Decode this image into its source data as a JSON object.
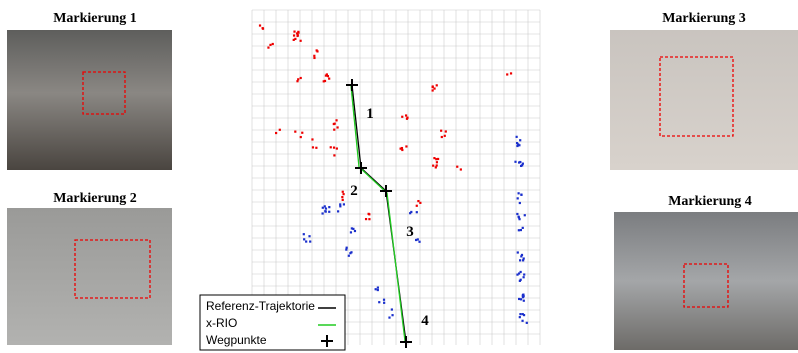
{
  "panels": [
    {
      "title": "Markierung 1"
    },
    {
      "title": "Markierung 2"
    },
    {
      "title": "Markierung 3"
    },
    {
      "title": "Markierung 4"
    }
  ],
  "plot": {
    "waypoint_labels": [
      "1",
      "2",
      "3",
      "4"
    ],
    "legend": [
      "Referenz-Trajektorie",
      "x-RIO",
      "Wegpunkte"
    ]
  }
}
